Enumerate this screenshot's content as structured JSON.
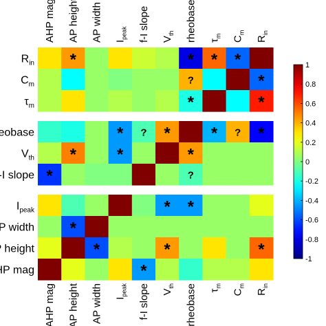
{
  "chart_data": {
    "type": "heatmap",
    "columns": [
      {
        "id": "ahp_mag",
        "text": "AHP mag"
      },
      {
        "id": "ap_height",
        "text": "AP height"
      },
      {
        "id": "ap_width",
        "text": "AP width"
      },
      {
        "id": "i_peak",
        "text": "I",
        "sub": "peak"
      },
      {
        "id": "fi_slope",
        "text": "f-I slope"
      },
      {
        "id": "v_th",
        "text": "V",
        "sub": "th"
      },
      {
        "id": "rheobase",
        "text": "rheobase"
      },
      {
        "id": "tau_m",
        "text": "τ",
        "sub": "m"
      },
      {
        "id": "c_m",
        "text": "C",
        "sub": "m"
      },
      {
        "id": "r_in",
        "text": "R",
        "sub": "in"
      }
    ],
    "groups": [
      {
        "rows": [
          {
            "text": "R",
            "sub": "in",
            "values": [
              0.3,
              0.45,
              0.05,
              0.3,
              0.15,
              0.1,
              -0.8,
              0.55,
              -0.55,
              1.0
            ],
            "marks": [
              "",
              "*",
              "",
              "",
              "",
              "",
              "*",
              "*",
              "*",
              ""
            ]
          },
          {
            "text": "C",
            "sub": "m",
            "values": [
              0.1,
              -0.25,
              0.05,
              0.0,
              0.05,
              0.05,
              0.4,
              -0.25,
              1.0,
              -0.55
            ],
            "marks": [
              "",
              "",
              "",
              "",
              "",
              "",
              "?",
              "",
              "",
              "*"
            ]
          },
          {
            "text": "τ",
            "sub": "m",
            "values": [
              0.1,
              0.3,
              0.05,
              0.1,
              0.05,
              0.1,
              -0.2,
              1.0,
              -0.25,
              0.7
            ],
            "marks": [
              "",
              "",
              "",
              "",
              "",
              "",
              "*",
              "",
              "",
              "*"
            ]
          }
        ]
      },
      {
        "rows": [
          {
            "text": "rheobase",
            "values": [
              -0.15,
              -0.2,
              0.05,
              -0.45,
              -0.1,
              0.45,
              1.0,
              -0.4,
              0.4,
              -0.75
            ],
            "marks": [
              "",
              "",
              "",
              "*",
              "?",
              "*",
              "",
              "*",
              "?",
              "*"
            ]
          },
          {
            "text": "V",
            "sub": "th",
            "values": [
              0.1,
              0.5,
              0.05,
              -0.45,
              0.05,
              1.0,
              0.45,
              0.05,
              0.05,
              0.05
            ],
            "marks": [
              "",
              "*",
              "",
              "*",
              "",
              "",
              "*",
              "",
              "",
              ""
            ]
          },
          {
            "text": "f-I slope",
            "values": [
              -0.65,
              0.05,
              0.0,
              0.0,
              1.0,
              0.05,
              -0.1,
              0.05,
              0.05,
              0.05
            ],
            "marks": [
              "*",
              "",
              "",
              "",
              "",
              "",
              "?",
              "",
              "",
              ""
            ]
          }
        ]
      },
      {
        "rows": [
          {
            "text": "I",
            "sub": "peak",
            "values": [
              0.3,
              -0.1,
              0.05,
              1.0,
              0.0,
              -0.45,
              -0.45,
              0.05,
              0.05,
              0.2
            ],
            "marks": [
              "",
              "",
              "",
              "",
              "",
              "*",
              "*",
              "",
              "",
              ""
            ]
          },
          {
            "text": "AP width",
            "values": [
              0.05,
              -0.6,
              1.0,
              0.05,
              0.05,
              0.05,
              0.05,
              0.05,
              0.05,
              0.05
            ],
            "marks": [
              "",
              "*",
              "",
              "",
              "",
              "",
              "",
              "",
              "",
              ""
            ]
          },
          {
            "text": "AP height",
            "values": [
              0.2,
              1.0,
              -0.6,
              0.1,
              0.05,
              0.45,
              0.05,
              0.3,
              0.05,
              0.55
            ],
            "marks": [
              "",
              "",
              "*",
              "",
              "",
              "*",
              "",
              "",
              "",
              "*"
            ]
          },
          {
            "text": "AHP mag",
            "values": [
              1.0,
              0.2,
              0.05,
              0.3,
              -0.45,
              0.1,
              -0.15,
              0.1,
              0.1,
              0.3
            ],
            "marks": [
              "",
              "",
              "",
              "",
              "*",
              "",
              "",
              "",
              "",
              ""
            ]
          }
        ]
      }
    ],
    "colorbar": {
      "colormap": "jet",
      "range": [
        -1,
        1
      ],
      "ticks": [
        "1",
        "0.8",
        "0.6",
        "0.4",
        "0.2",
        "0",
        "-0.2",
        "-0.4",
        "-0.6",
        "-0.8",
        "-1"
      ],
      "tick_values": [
        1,
        0.8,
        0.6,
        0.4,
        0.2,
        0,
        -0.2,
        -0.4,
        -0.6,
        -0.8,
        -1
      ]
    }
  }
}
